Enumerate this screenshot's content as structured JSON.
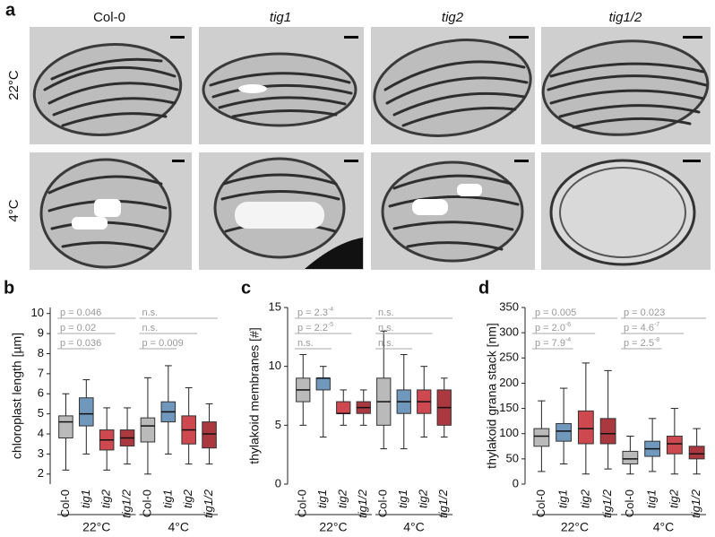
{
  "panel_a": {
    "label": "a",
    "columns": [
      "Col-0",
      "tig1",
      "tig2",
      "tig1/2"
    ],
    "rows": [
      "22°C",
      "4°C"
    ]
  },
  "chart_data": [
    {
      "type": "box",
      "panel_label": "b",
      "ylabel": "chloroplast length [µm]",
      "categories": [
        "Col-0",
        "tig1",
        "tig2",
        "tig1/2",
        "Col-0",
        "tig1",
        "tig2",
        "tig1/2"
      ],
      "colors": [
        "#b3b3b3",
        "#5f8db5",
        "#c8343c",
        "#a3222a",
        "#b3b3b3",
        "#5f8db5",
        "#c8343c",
        "#a3222a"
      ],
      "groups": [
        "22°C",
        "4°C"
      ],
      "ylim": [
        1.5,
        10.3
      ],
      "yticks": [
        2,
        3,
        4,
        5,
        6,
        7,
        8,
        9,
        10
      ],
      "boxes": [
        {
          "min": 2.2,
          "q1": 3.8,
          "median": 4.6,
          "q3": 4.9,
          "max": 6.0
        },
        {
          "min": 3.0,
          "q1": 4.4,
          "median": 5.0,
          "q3": 5.8,
          "max": 6.7
        },
        {
          "min": 2.2,
          "q1": 3.2,
          "median": 3.7,
          "q3": 4.2,
          "max": 5.3
        },
        {
          "min": 2.5,
          "q1": 3.4,
          "median": 3.8,
          "q3": 4.2,
          "max": 5.3
        },
        {
          "min": 2.0,
          "q1": 3.6,
          "median": 4.4,
          "q3": 4.8,
          "max": 6.8
        },
        {
          "min": 3.0,
          "q1": 4.6,
          "median": 5.1,
          "q3": 5.6,
          "max": 7.4
        },
        {
          "min": 2.5,
          "q1": 3.5,
          "median": 4.2,
          "q3": 4.9,
          "max": 6.3
        },
        {
          "min": 2.5,
          "q1": 3.3,
          "median": 4.0,
          "q3": 4.6,
          "max": 5.5
        }
      ],
      "annotations": [
        [
          {
            "text": "p = 0.046"
          },
          {
            "text": "p = 0.02"
          },
          {
            "text": "p = 0.036"
          }
        ],
        [
          {
            "text": "n.s."
          },
          {
            "text": "n.s."
          },
          {
            "text": "p = 0.009"
          }
        ]
      ]
    },
    {
      "type": "box",
      "panel_label": "c",
      "ylabel": "thylakoid membranes [#]",
      "categories": [
        "Col-0",
        "tig1",
        "tig2",
        "tig1/2",
        "Col-0",
        "tig1",
        "tig2",
        "tig1/2"
      ],
      "colors": [
        "#b3b3b3",
        "#5f8db5",
        "#c8343c",
        "#a3222a",
        "#b3b3b3",
        "#5f8db5",
        "#c8343c",
        "#a3222a"
      ],
      "groups": [
        "22°C",
        "4°C"
      ],
      "ylim": [
        0,
        15
      ],
      "yticks": [
        0,
        5,
        10,
        15
      ],
      "boxes": [
        {
          "min": 5,
          "q1": 7,
          "median": 8,
          "q3": 9,
          "max": 11
        },
        {
          "min": 4,
          "q1": 8,
          "median": 9,
          "q3": 9,
          "max": 10
        },
        {
          "min": 5,
          "q1": 6,
          "median": 6,
          "q3": 7,
          "max": 8
        },
        {
          "min": 5,
          "q1": 6,
          "median": 6.5,
          "q3": 7,
          "max": 8
        },
        {
          "min": 3,
          "q1": 5,
          "median": 7,
          "q3": 9,
          "max": 13
        },
        {
          "min": 3,
          "q1": 6,
          "median": 7,
          "q3": 8,
          "max": 11
        },
        {
          "min": 4,
          "q1": 6,
          "median": 7,
          "q3": 8,
          "max": 10
        },
        {
          "min": 4,
          "q1": 5,
          "median": 6.5,
          "q3": 8,
          "max": 9
        }
      ],
      "annotations": [
        [
          {
            "text": "p = 2.3",
            "sup": "-4"
          },
          {
            "text": "p = 2.2",
            "sup": "-5"
          },
          {
            "text": "n.s."
          }
        ],
        [
          {
            "text": "n.s."
          },
          {
            "text": "n.s."
          },
          {
            "text": "n.s."
          }
        ]
      ]
    },
    {
      "type": "box",
      "panel_label": "d",
      "ylabel": "thylakoid grana stack [nm]",
      "categories": [
        "Col-0",
        "tig1",
        "tig2",
        "tig1/2",
        "Col-0",
        "tig1",
        "tig2",
        "tig1/2"
      ],
      "colors": [
        "#b3b3b3",
        "#5f8db5",
        "#c8343c",
        "#a3222a",
        "#b3b3b3",
        "#5f8db5",
        "#c8343c",
        "#a3222a"
      ],
      "groups": [
        "22°C",
        "4°C"
      ],
      "ylim": [
        0,
        350
      ],
      "yticks": [
        0,
        50,
        100,
        150,
        200,
        250,
        300,
        350
      ],
      "boxes": [
        {
          "min": 25,
          "q1": 75,
          "median": 95,
          "q3": 110,
          "max": 165
        },
        {
          "min": 40,
          "q1": 85,
          "median": 105,
          "q3": 120,
          "max": 190
        },
        {
          "min": 20,
          "q1": 80,
          "median": 110,
          "q3": 145,
          "max": 240
        },
        {
          "min": 30,
          "q1": 80,
          "median": 100,
          "q3": 130,
          "max": 225
        },
        {
          "min": 20,
          "q1": 40,
          "median": 50,
          "q3": 65,
          "max": 95
        },
        {
          "min": 25,
          "q1": 55,
          "median": 70,
          "q3": 85,
          "max": 130
        },
        {
          "min": 20,
          "q1": 60,
          "median": 80,
          "q3": 95,
          "max": 150
        },
        {
          "min": 20,
          "q1": 50,
          "median": 60,
          "q3": 75,
          "max": 110
        }
      ],
      "annotations": [
        [
          {
            "text": "p = 0.005"
          },
          {
            "text": "p = 2.0",
            "sup": "-6"
          },
          {
            "text": "p = 7.9",
            "sup": "-4"
          }
        ],
        [
          {
            "text": "p = 0.023"
          },
          {
            "text": "p = 4.6",
            "sup": "-7"
          },
          {
            "text": "p = 2.5",
            "sup": "-8"
          }
        ]
      ]
    }
  ]
}
